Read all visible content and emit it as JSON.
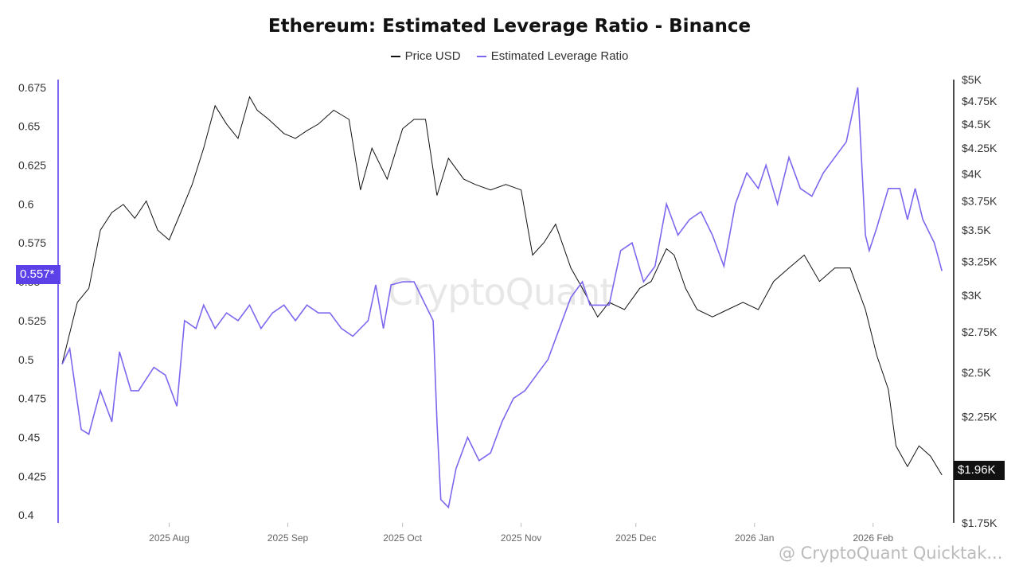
{
  "chart_data": {
    "type": "line",
    "title": "Ethereum: Estimated Leverage Ratio - Binance",
    "legend_position": "top-center",
    "grid": false,
    "x_ticks": [
      "2025 Aug",
      "2025 Sep",
      "2025 Oct",
      "2025 Nov",
      "2025 Dec",
      "2026 Jan",
      "2026 Feb"
    ],
    "x_range": [
      "2025-07-04",
      "2026-02-20"
    ],
    "left_axis": {
      "ticks": [
        "0.675",
        "0.65",
        "0.625",
        "0.6",
        "0.575",
        "0.55",
        "0.525",
        "0.5",
        "0.475",
        "0.45",
        "0.425",
        "0.4"
      ],
      "range": [
        0.395,
        0.68
      ]
    },
    "right_axis": {
      "ticks": [
        "$5K",
        "$4.75K",
        "$4.5K",
        "$4.25K",
        "$4K",
        "$3.75K",
        "$3.5K",
        "$3.25K",
        "$3K",
        "$2.75K",
        "$2.5K",
        "$2.25K",
        "$1.75K"
      ],
      "scale": "log",
      "range": [
        1750,
        5000
      ]
    },
    "current_left_label": "0.557*",
    "current_right_label": "$1.96K",
    "series": [
      {
        "name": "Price USD",
        "axis": "right",
        "color": "#111111",
        "x": [
          "2025-07-04",
          "2025-07-08",
          "2025-07-11",
          "2025-07-14",
          "2025-07-17",
          "2025-07-20",
          "2025-07-23",
          "2025-07-26",
          "2025-07-29",
          "2025-08-01",
          "2025-08-04",
          "2025-08-07",
          "2025-08-10",
          "2025-08-13",
          "2025-08-16",
          "2025-08-19",
          "2025-08-22",
          "2025-08-24",
          "2025-08-27",
          "2025-08-31",
          "2025-09-03",
          "2025-09-06",
          "2025-09-09",
          "2025-09-13",
          "2025-09-17",
          "2025-09-20",
          "2025-09-23",
          "2025-09-27",
          "2025-10-01",
          "2025-10-04",
          "2025-10-07",
          "2025-10-10",
          "2025-10-13",
          "2025-10-17",
          "2025-10-20",
          "2025-10-24",
          "2025-10-28",
          "2025-11-01",
          "2025-11-04",
          "2025-11-07",
          "2025-11-10",
          "2025-11-14",
          "2025-11-17",
          "2025-11-21",
          "2025-11-24",
          "2025-11-28",
          "2025-12-02",
          "2025-12-05",
          "2025-12-09",
          "2025-12-11",
          "2025-12-14",
          "2025-12-17",
          "2025-12-21",
          "2025-12-25",
          "2025-12-29",
          "2026-01-02",
          "2026-01-06",
          "2026-01-10",
          "2026-01-14",
          "2026-01-18",
          "2026-01-22",
          "2026-01-26",
          "2026-01-30",
          "2026-02-02",
          "2026-02-05",
          "2026-02-07",
          "2026-02-10",
          "2026-02-13",
          "2026-02-16",
          "2026-02-19"
        ],
        "values": [
          2550,
          2950,
          3050,
          3500,
          3650,
          3720,
          3600,
          3750,
          3500,
          3420,
          3650,
          3900,
          4250,
          4700,
          4500,
          4350,
          4800,
          4650,
          4550,
          4400,
          4350,
          4430,
          4500,
          4650,
          4550,
          3850,
          4250,
          3950,
          4450,
          4550,
          4550,
          3800,
          4150,
          3950,
          3900,
          3850,
          3900,
          3850,
          3300,
          3400,
          3550,
          3200,
          3050,
          2850,
          2950,
          2900,
          3050,
          3100,
          3350,
          3300,
          3050,
          2900,
          2850,
          2900,
          2950,
          2900,
          3100,
          3200,
          3300,
          3100,
          3200,
          3200,
          2900,
          2600,
          2400,
          2100,
          2000,
          2100,
          2050,
          1960
        ]
      },
      {
        "name": "Estimated Leverage Ratio",
        "axis": "left",
        "color": "#7b68ee",
        "x": [
          "2025-07-04",
          "2025-07-06",
          "2025-07-09",
          "2025-07-11",
          "2025-07-14",
          "2025-07-17",
          "2025-07-19",
          "2025-07-22",
          "2025-07-24",
          "2025-07-28",
          "2025-07-31",
          "2025-08-03",
          "2025-08-05",
          "2025-08-08",
          "2025-08-10",
          "2025-08-13",
          "2025-08-16",
          "2025-08-19",
          "2025-08-22",
          "2025-08-25",
          "2025-08-28",
          "2025-08-31",
          "2025-09-03",
          "2025-09-06",
          "2025-09-09",
          "2025-09-12",
          "2025-09-15",
          "2025-09-18",
          "2025-09-22",
          "2025-09-24",
          "2025-09-26",
          "2025-09-28",
          "2025-10-01",
          "2025-10-04",
          "2025-10-07",
          "2025-10-09",
          "2025-10-10",
          "2025-10-11",
          "2025-10-13",
          "2025-10-15",
          "2025-10-18",
          "2025-10-21",
          "2025-10-24",
          "2025-10-27",
          "2025-10-30",
          "2025-11-02",
          "2025-11-05",
          "2025-11-08",
          "2025-11-11",
          "2025-11-14",
          "2025-11-17",
          "2025-11-19",
          "2025-11-21",
          "2025-11-24",
          "2025-11-27",
          "2025-11-30",
          "2025-12-03",
          "2025-12-06",
          "2025-12-09",
          "2025-12-12",
          "2025-12-15",
          "2025-12-18",
          "2025-12-21",
          "2025-12-24",
          "2025-12-27",
          "2025-12-30",
          "2026-01-02",
          "2026-01-04",
          "2026-01-07",
          "2026-01-10",
          "2026-01-13",
          "2026-01-16",
          "2026-01-19",
          "2026-01-22",
          "2026-01-25",
          "2026-01-28",
          "2026-01-30",
          "2026-01-31",
          "2026-02-02",
          "2026-02-05",
          "2026-02-08",
          "2026-02-10",
          "2026-02-12",
          "2026-02-14",
          "2026-02-17",
          "2026-02-19"
        ],
        "values": [
          0.497,
          0.507,
          0.455,
          0.452,
          0.48,
          0.46,
          0.505,
          0.48,
          0.48,
          0.495,
          0.49,
          0.47,
          0.525,
          0.52,
          0.535,
          0.52,
          0.53,
          0.525,
          0.535,
          0.52,
          0.53,
          0.535,
          0.525,
          0.535,
          0.53,
          0.53,
          0.52,
          0.515,
          0.525,
          0.548,
          0.52,
          0.548,
          0.55,
          0.55,
          0.535,
          0.525,
          0.46,
          0.41,
          0.405,
          0.43,
          0.45,
          0.435,
          0.44,
          0.46,
          0.475,
          0.48,
          0.49,
          0.5,
          0.52,
          0.54,
          0.55,
          0.535,
          0.535,
          0.535,
          0.57,
          0.575,
          0.55,
          0.56,
          0.6,
          0.58,
          0.59,
          0.595,
          0.58,
          0.56,
          0.6,
          0.62,
          0.61,
          0.625,
          0.6,
          0.63,
          0.61,
          0.605,
          0.62,
          0.63,
          0.64,
          0.675,
          0.58,
          0.57,
          0.585,
          0.61,
          0.61,
          0.59,
          0.61,
          0.59,
          0.575,
          0.557
        ]
      }
    ]
  },
  "watermark": "CryptoQuant",
  "footer": "@ CryptoQuant Quicktak..."
}
